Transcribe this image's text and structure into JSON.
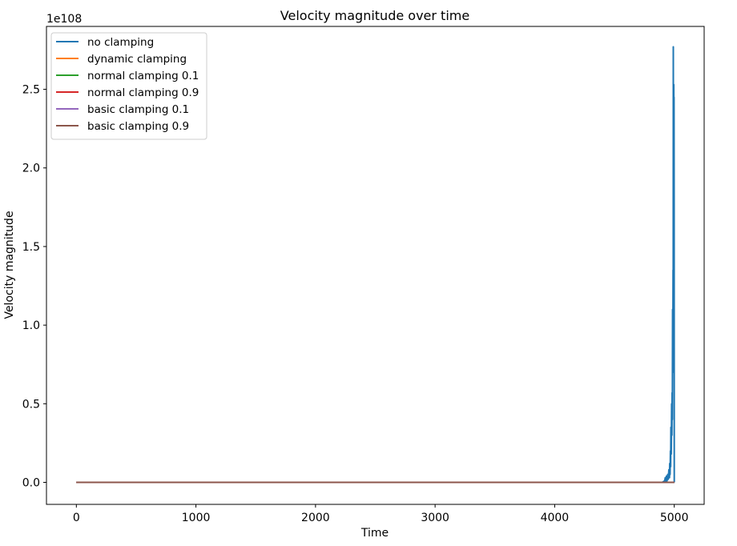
{
  "chart_data": {
    "type": "line",
    "title": "Velocity magnitude over time",
    "xlabel": "Time",
    "ylabel": "Velocity magnitude",
    "y_offset_label": "1e108",
    "xlim": [
      -250,
      5250
    ],
    "ylim": [
      -0.14,
      2.9
    ],
    "x_ticks": [
      0,
      1000,
      2000,
      3000,
      4000,
      5000
    ],
    "x_tick_labels": [
      "0",
      "1000",
      "2000",
      "3000",
      "4000",
      "5000"
    ],
    "y_ticks": [
      0.0,
      0.5,
      1.0,
      1.5,
      2.0,
      2.5
    ],
    "y_tick_labels": [
      "0.0",
      "0.5",
      "1.0",
      "1.5",
      "2.0",
      "2.5"
    ],
    "grid": false,
    "legend_position": "top-left",
    "series": [
      {
        "name": "no clamping",
        "color": "#1f77b4",
        "x": [
          0,
          4900,
          4920,
          4925,
          4930,
          4935,
          4940,
          4945,
          4950,
          4955,
          4960,
          4962,
          4965,
          4968,
          4970,
          4972,
          4975,
          4978,
          4980,
          4982,
          4984,
          4986,
          4988,
          4990,
          4991,
          4992,
          4993,
          4994,
          4995,
          4996,
          4997,
          4998,
          4999,
          5000
        ],
        "y": [
          0,
          0,
          0.01,
          0.03,
          0.005,
          0.04,
          0.01,
          0.05,
          0.02,
          0.08,
          0.03,
          0.12,
          0.05,
          0.2,
          0.1,
          0.35,
          0.18,
          0.5,
          0.3,
          0.57,
          0.4,
          1.1,
          0.7,
          1.35,
          0.9,
          2.77,
          1.9,
          2.5,
          1.73,
          2.53,
          2.2,
          2.45,
          1.8,
          0
        ]
      },
      {
        "name": "dynamic clamping",
        "color": "#ff7f0e",
        "x": [
          0,
          5000
        ],
        "y": [
          0,
          0
        ]
      },
      {
        "name": "normal clamping 0.1",
        "color": "#2ca02c",
        "x": [
          0,
          5000
        ],
        "y": [
          0,
          0
        ]
      },
      {
        "name": "normal clamping 0.9",
        "color": "#d62728",
        "x": [
          0,
          5000
        ],
        "y": [
          0,
          0
        ]
      },
      {
        "name": "basic clamping 0.1",
        "color": "#9467bd",
        "x": [
          0,
          5000
        ],
        "y": [
          0,
          0
        ]
      },
      {
        "name": "basic clamping 0.9",
        "color": "#8c564b",
        "x": [
          0,
          5000
        ],
        "y": [
          0,
          0
        ]
      }
    ]
  }
}
